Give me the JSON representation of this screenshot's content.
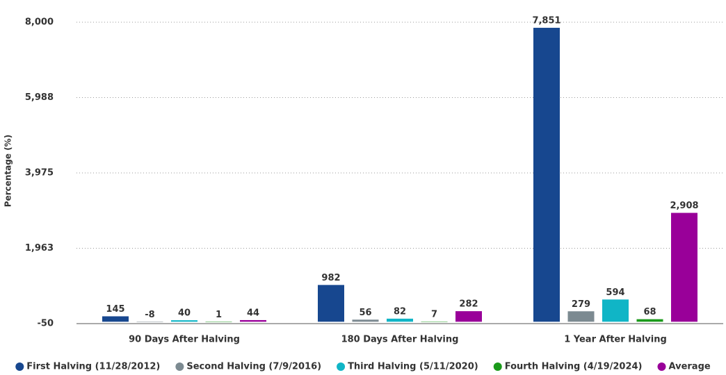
{
  "chart_data": {
    "type": "bar",
    "y_label": "Percentage (%)",
    "categories": [
      "90 Days After Halving",
      "180 Days After Halving",
      "1 Year After Halving"
    ],
    "series": [
      {
        "name": "First Halving (11/28/2012)",
        "color": "#17478f",
        "values": [
          145,
          982,
          7851
        ],
        "value_labels": [
          "145",
          "982",
          "7,851"
        ]
      },
      {
        "name": "Second Halving (7/9/2016)",
        "color": "#7c8a91",
        "values": [
          -8,
          56,
          279
        ],
        "value_labels": [
          "-8",
          "56",
          "279"
        ]
      },
      {
        "name": "Third Halving (5/11/2020)",
        "color": "#10b5c6",
        "values": [
          40,
          82,
          594
        ],
        "value_labels": [
          "40",
          "82",
          "594"
        ]
      },
      {
        "name": "Fourth Halving (4/19/2024)",
        "color": "#1a9a1a",
        "values": [
          1,
          7,
          68
        ],
        "value_labels": [
          "1",
          "7",
          "68"
        ]
      },
      {
        "name": "Average",
        "color": "#990099",
        "values": [
          44,
          282,
          2908
        ],
        "value_labels": [
          "44",
          "282",
          "2,908"
        ]
      }
    ],
    "ylim": [
      -50,
      8000
    ],
    "yticks": [
      -50,
      {
        "value": 1963,
        "label": "1,963"
      },
      {
        "value": 3975,
        "label": "3,975"
      },
      {
        "value": 5988,
        "label": "5,988"
      },
      {
        "value": 8000,
        "label": "8,000"
      }
    ],
    "grid": true,
    "legend": "bottom"
  }
}
